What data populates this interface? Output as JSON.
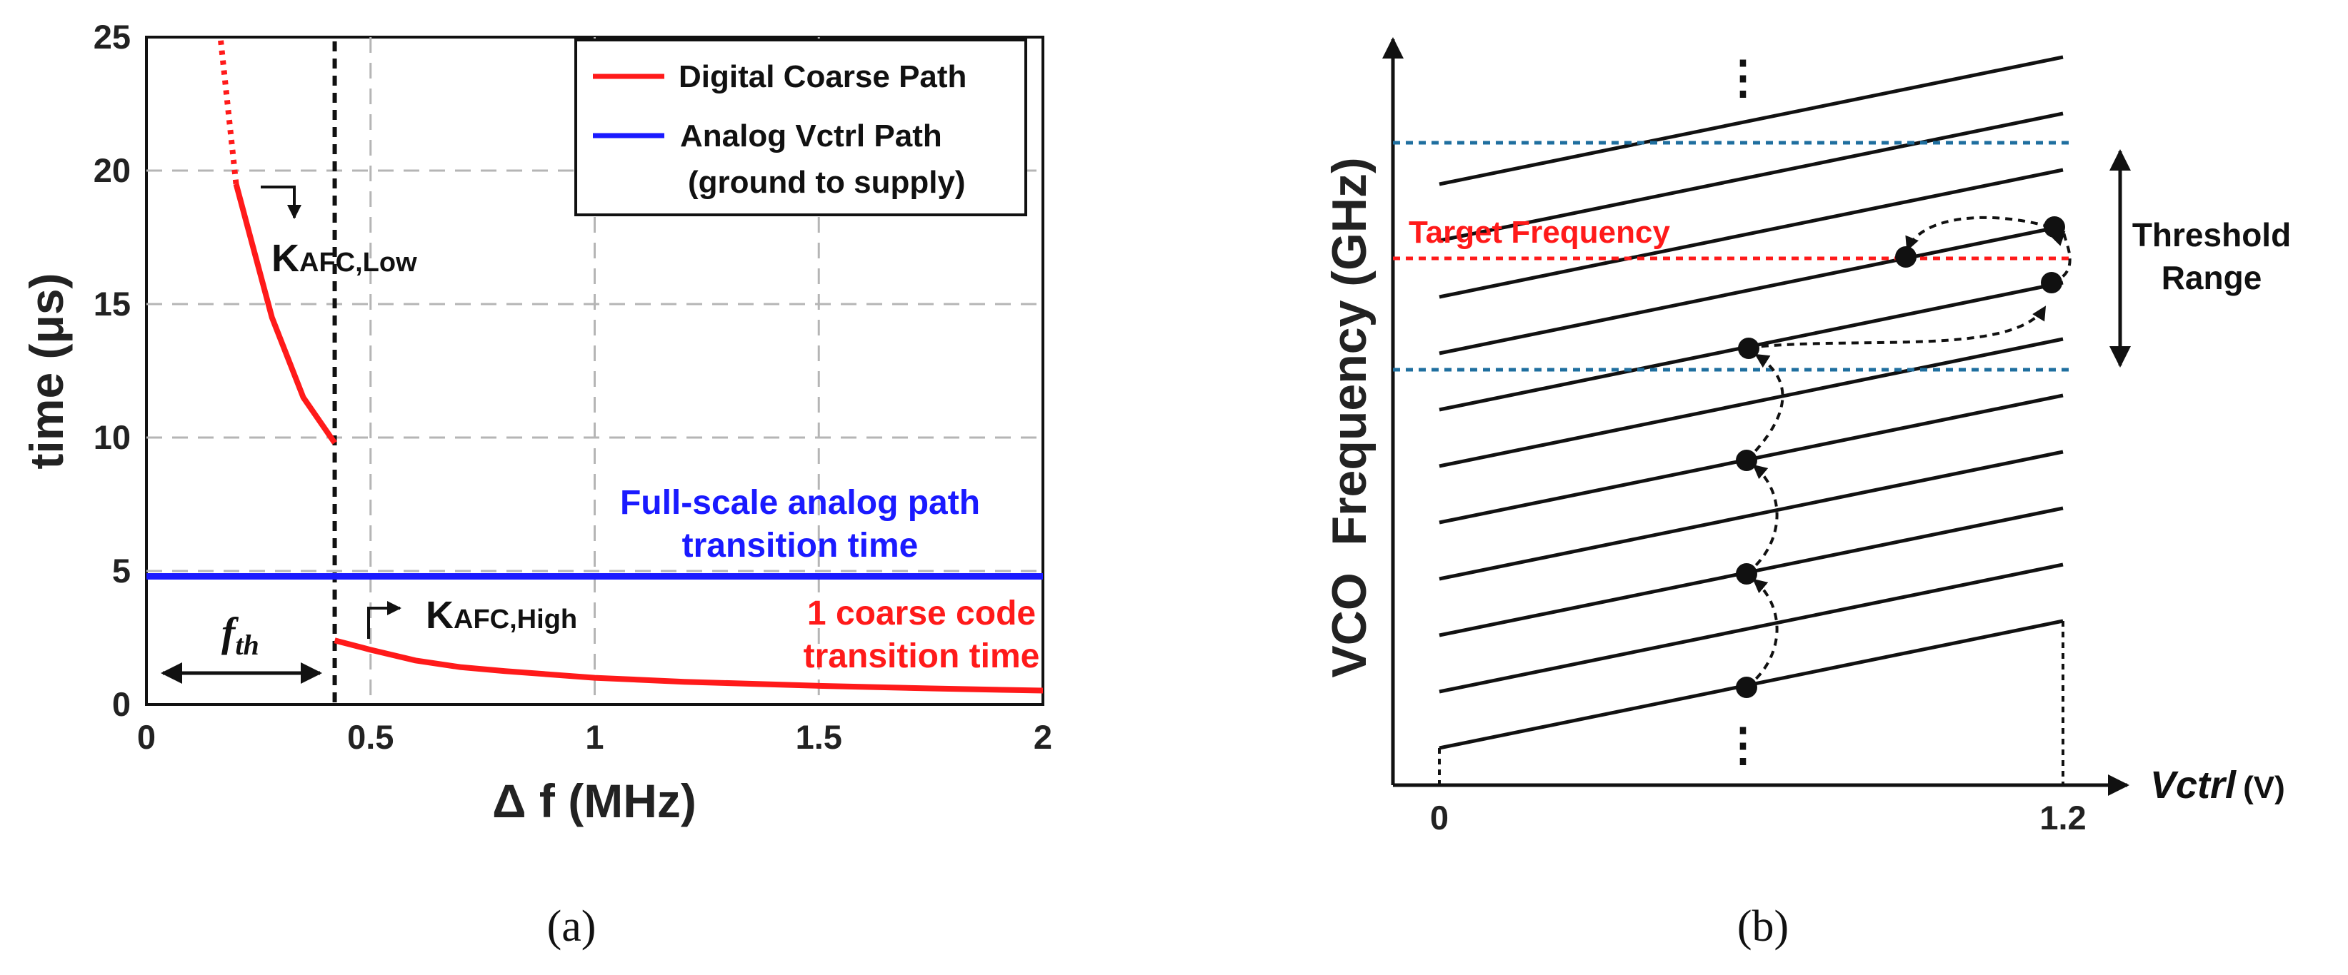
{
  "colors": {
    "digital": "#ff1a1a",
    "analog": "#1a1aff",
    "guide": "#1f6f9f",
    "target": "#ff1a1a",
    "ink": "#111111"
  },
  "chart_data": [
    {
      "type": "line",
      "panel_caption": "(a)",
      "xlabel": "Δ f (MHz)",
      "ylabel": "time (μs)",
      "xlim": [
        0,
        2
      ],
      "ylim": [
        0,
        25
      ],
      "x_ticks": [
        "0",
        "0.5",
        "1",
        "1.5",
        "2"
      ],
      "y_ticks": [
        "0",
        "5",
        "10",
        "15",
        "20",
        "25"
      ],
      "grid": true,
      "legend_position": "top-right",
      "series": [
        {
          "name": "Digital Coarse Path",
          "color": "#ff1a1a",
          "points": [
            [
              0.42,
              9.8
            ],
            [
              0.35,
              11.5
            ],
            [
              0.28,
              14.5
            ],
            [
              0.2,
              19.5
            ]
          ],
          "dotted_extension": [
            [
              0.2,
              19.5
            ],
            [
              0.165,
              25
            ]
          ],
          "high_points": [
            [
              0.42,
              2.4
            ],
            [
              0.5,
              2.05
            ],
            [
              0.6,
              1.65
            ],
            [
              0.7,
              1.4
            ],
            [
              0.8,
              1.25
            ],
            [
              1.0,
              1.0
            ],
            [
              1.2,
              0.85
            ],
            [
              1.5,
              0.7
            ],
            [
              1.75,
              0.6
            ],
            [
              2.0,
              0.52
            ]
          ]
        },
        {
          "name": "Analog Vctrl Path",
          "name_line2": "(ground to supply)",
          "color": "#1a1aff",
          "points": [
            [
              0,
              4.8
            ],
            [
              2,
              4.8
            ]
          ]
        }
      ],
      "threshold_x": 0.42,
      "annotations": {
        "k_low_main": "K",
        "k_low_sub": "AFC,Low",
        "k_high_main": "K",
        "k_high_sub": "AFC,High",
        "fth_main": "f",
        "fth_sub": "th",
        "analog_note_line1": "Full-scale analog path",
        "analog_note_line2": "transition time",
        "coarse_note_line1": "1 coarse code",
        "coarse_note_line2": "transition time"
      }
    },
    {
      "type": "diagram",
      "panel_caption": "(b)",
      "ylabel": "VCO  Frequency (GHz)",
      "xlabel_main": "Vctrl",
      "xlabel_unit": "(V)",
      "x_ticks": [
        "0",
        "1.2"
      ],
      "num_bands": 11,
      "target_label": "Target Frequency",
      "threshold_label_line1": "Threshold",
      "threshold_label_line2": "Range",
      "ellipsis_top": "⋮",
      "ellipsis_bottom": "⋮"
    }
  ]
}
